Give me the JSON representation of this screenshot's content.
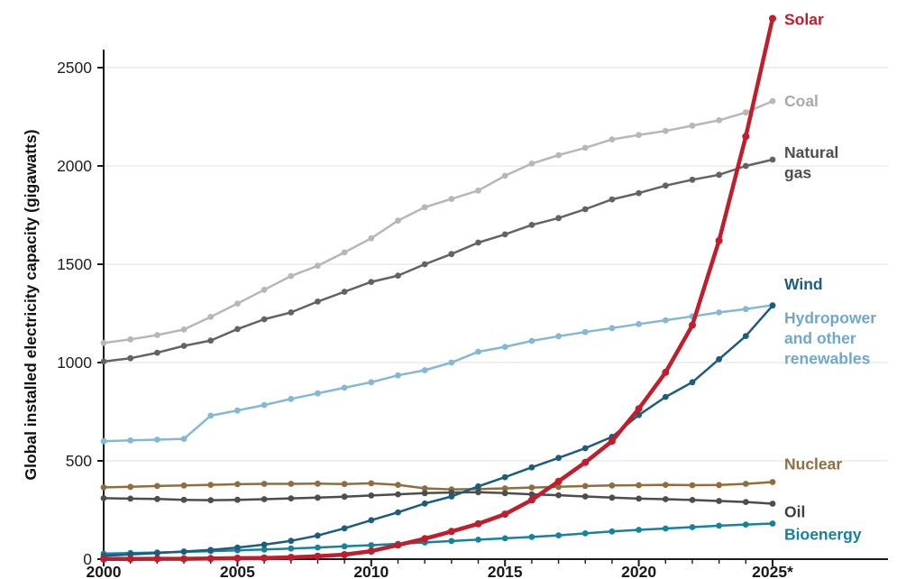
{
  "chart_data": {
    "type": "line",
    "title": "",
    "xlabel": "",
    "ylabel": "Global installed electricity capacity (gigawatts)",
    "ylim": [
      0,
      2800
    ],
    "x": [
      2000,
      2001,
      2002,
      2003,
      2004,
      2005,
      2006,
      2007,
      2008,
      2009,
      2010,
      2011,
      2012,
      2013,
      2014,
      2015,
      2016,
      2017,
      2018,
      2019,
      2020,
      2021,
      2022,
      2023,
      2024,
      2025
    ],
    "x_axis": {
      "major_ticks": [
        2000,
        2005,
        2010,
        2015,
        2020,
        2025
      ],
      "major_labels": [
        "2000",
        "2005",
        "2010",
        "2015",
        "2020",
        "2025*"
      ],
      "minor_ticks_every_year": true
    },
    "y_axis": {
      "ticks": [
        0,
        500,
        1000,
        1500,
        2000,
        2500
      ],
      "labels": [
        "0",
        "500",
        "1000",
        "1500",
        "2000",
        "2500"
      ]
    },
    "grid": {
      "horizontal": true,
      "color": "#e2e2e2"
    },
    "axis_color": "#1a1a1a",
    "legend_position": "line-end-labels-right",
    "series": [
      {
        "name": "Coal",
        "label_lines": [
          "Coal"
        ],
        "color": "#b7b7b7",
        "label_color": "#a9a9a9",
        "line_width": 2.5,
        "marker_radius": 3.4,
        "label_dy": 6,
        "values": [
          1100,
          1118,
          1140,
          1168,
          1232,
          1300,
          1370,
          1440,
          1492,
          1560,
          1632,
          1722,
          1790,
          1832,
          1875,
          1950,
          2012,
          2055,
          2092,
          2135,
          2158,
          2178,
          2205,
          2232,
          2272,
          2330
        ]
      },
      {
        "name": "Natural gas",
        "label_lines": [
          "Natural",
          "gas"
        ],
        "color": "#636363",
        "label_color": "#4f4f4f",
        "line_width": 2.5,
        "marker_radius": 3.4,
        "label_dy": -2,
        "values": [
          1005,
          1022,
          1050,
          1085,
          1112,
          1170,
          1220,
          1255,
          1310,
          1360,
          1410,
          1442,
          1500,
          1552,
          1610,
          1652,
          1700,
          1735,
          1780,
          1830,
          1862,
          1900,
          1930,
          1955,
          2000,
          2032
        ]
      },
      {
        "name": "Hydropower and other renewables",
        "label_lines": [
          "Hydropower",
          "and other",
          "renewables"
        ],
        "color": "#85b8d5",
        "label_color": "#6fa8cc",
        "line_width": 2.5,
        "marker_radius": 3.4,
        "label_dy": 20,
        "values": [
          600,
          604,
          608,
          612,
          730,
          756,
          784,
          815,
          843,
          872,
          900,
          935,
          961,
          1000,
          1055,
          1080,
          1110,
          1134,
          1155,
          1175,
          1196,
          1215,
          1235,
          1255,
          1272,
          1292
        ]
      },
      {
        "name": "Nuclear",
        "label_lines": [
          "Nuclear"
        ],
        "color": "#8f6e3e",
        "label_color": "#8f6e3e",
        "line_width": 2.5,
        "marker_radius": 3.4,
        "label_dy": -14,
        "values": [
          365,
          368,
          372,
          375,
          378,
          381,
          383,
          383,
          384,
          382,
          386,
          378,
          360,
          355,
          357,
          360,
          364,
          368,
          372,
          375,
          376,
          378,
          376,
          377,
          383,
          392
        ]
      },
      {
        "name": "Oil",
        "label_lines": [
          "Oil"
        ],
        "color": "#4d4d4d",
        "label_color": "#3f3f3f",
        "line_width": 2.5,
        "marker_radius": 3.4,
        "label_dy": 15,
        "values": [
          310,
          308,
          306,
          302,
          300,
          302,
          305,
          309,
          313,
          318,
          324,
          330,
          336,
          339,
          341,
          336,
          330,
          325,
          319,
          313,
          308,
          305,
          301,
          296,
          291,
          282
        ]
      },
      {
        "name": "Bioenergy",
        "label_lines": [
          "Bioenergy"
        ],
        "color": "#15829e",
        "label_color": "#15829e",
        "line_width": 2.5,
        "marker_radius": 3.4,
        "label_dy": 18,
        "values": [
          28,
          31,
          34,
          37,
          41,
          45,
          49,
          54,
          59,
          65,
          71,
          78,
          85,
          92,
          99,
          106,
          113,
          121,
          131,
          141,
          149,
          156,
          163,
          170,
          176,
          181
        ]
      },
      {
        "name": "Wind",
        "label_lines": [
          "Wind"
        ],
        "color": "#1c5d7e",
        "label_color": "#1c5d7e",
        "line_width": 2.5,
        "marker_radius": 3.4,
        "label_dy": -18,
        "values": [
          17,
          24,
          31,
          39,
          47,
          59,
          74,
          93,
          120,
          157,
          198,
          238,
          283,
          319,
          370,
          417,
          467,
          515,
          564,
          622,
          733,
          825,
          900,
          1017,
          1135,
          1290
        ]
      },
      {
        "name": "Solar",
        "label_lines": [
          "Solar"
        ],
        "color": "#bf1e2c",
        "label_color": "#bf1e2c",
        "line_width": 4.5,
        "marker_radius": 4,
        "label_dy": 7,
        "values": [
          1,
          1,
          2,
          2,
          3,
          5,
          6,
          9,
          15,
          23,
          41,
          72,
          104,
          141,
          180,
          229,
          301,
          396,
          492,
          600,
          765,
          950,
          1190,
          1620,
          2150,
          2750
        ]
      }
    ]
  }
}
